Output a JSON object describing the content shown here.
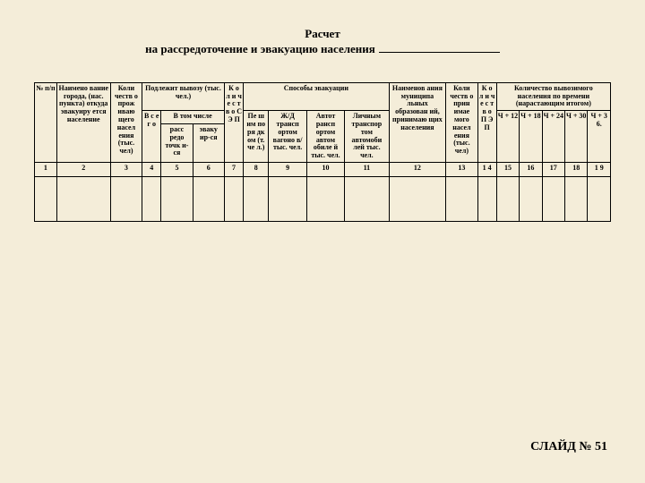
{
  "background_color": "#f4edd9",
  "title_line1": "Расчет",
  "title_line2": "на рассредоточение и эвакуацию населения",
  "slide_label": "СЛАЙД № 51",
  "headers": {
    "c1": "№ п/п",
    "c2": "Наимено вание города, (нас. пункта) откуда эвакуиру ется население",
    "c3": "Коли честв о прож иваю щего насел ения (тыс. чел)",
    "c4_group": "Подлежит вывозу (тыс. чел.)",
    "c4a": "В с е г о",
    "c4_sub": "В том числе",
    "c4b": "расс редо точк и-ся",
    "c4c": "эваку ир-ся",
    "c5": "К о л и ч е с т в о С Э П",
    "c6_group": "Способы эвакуации",
    "c6a": "Пе ш им по ря дк ом (т. че л.)",
    "c6b": "Ж/Д трансп ортом вагоно в/тыс. чел.",
    "c6c": "Автот рансп ортом автом обиле й тыс. чел.",
    "c6d": "Личным транспор том автомоби лей тыс. чел.",
    "c7": "Наименов ания муниципа льных образован ий, принимаю щих населения",
    "c8": "Коли честв о прин имае мого насел ения (тыс. чел)",
    "c9": "К о л и ч е с т в о П Э П",
    "c10_group": "Количество вывозимого населения по времени (нарастающим итогом)",
    "c10a": "Ч + 12",
    "c10b": "Ч + 18",
    "c10c": "Ч + 24",
    "c10d": "Ч + 30",
    "c10e": "Ч + 3 6."
  },
  "numbers": [
    "1",
    "2",
    "3",
    "4",
    "5",
    "6",
    "7",
    "8",
    "9",
    "10",
    "11",
    "12",
    "13",
    "1 4",
    "15",
    "16",
    "17",
    "18",
    "1 9"
  ],
  "col_widths_pct": [
    3.5,
    8.5,
    5,
    3,
    5,
    5,
    3,
    4,
    6,
    6,
    7,
    9,
    5,
    3,
    3.6,
    3.6,
    3.6,
    3.6,
    3.6
  ]
}
